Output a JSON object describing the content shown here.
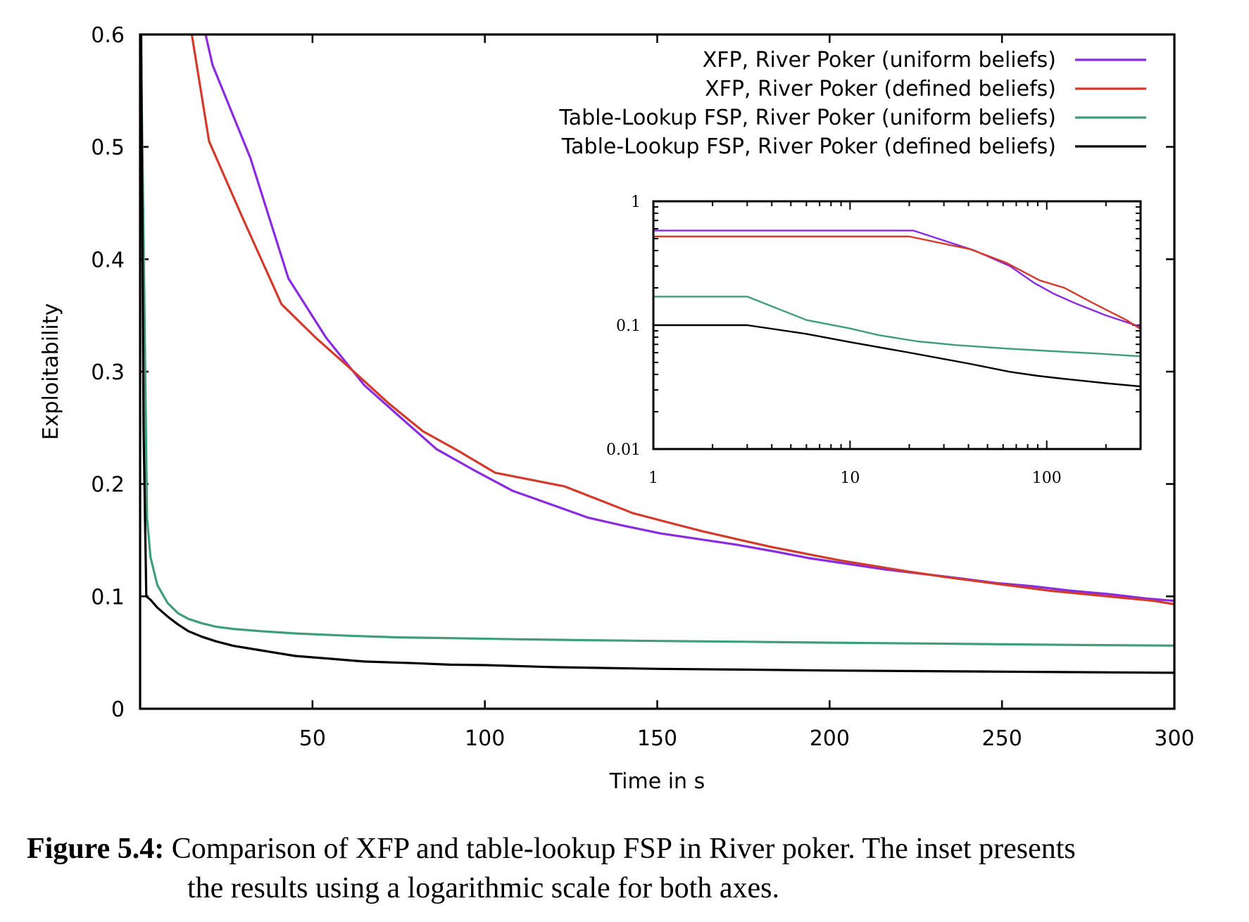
{
  "chart_data": [
    {
      "id": "main",
      "type": "line",
      "xlabel": "Time in s",
      "ylabel": "Exploitability",
      "xlim": [
        0,
        300
      ],
      "ylim": [
        0,
        0.6
      ],
      "xticks": [
        50,
        100,
        150,
        200,
        250,
        300
      ],
      "yticks": [
        0,
        0.1,
        0.2,
        0.3,
        0.4,
        0.5,
        0.6
      ],
      "xtick_labels": [
        "50",
        "100",
        "150",
        "200",
        "250",
        "300"
      ],
      "ytick_labels": [
        "0",
        "0.1",
        "0.2",
        "0.3",
        "0.4",
        "0.5",
        "0.6"
      ],
      "legend_position": "top-right",
      "series": [
        {
          "name": "XFP, River Poker (uniform beliefs)",
          "color": "#8a2be2",
          "points": [
            [
              19,
              0.6
            ],
            [
              21,
              0.573
            ],
            [
              32,
              0.49
            ],
            [
              43,
              0.383
            ],
            [
              54,
              0.33
            ],
            [
              65,
              0.288
            ],
            [
              76,
              0.258
            ],
            [
              86,
              0.231
            ],
            [
              97,
              0.212
            ],
            [
              108,
              0.194
            ],
            [
              119,
              0.182
            ],
            [
              130,
              0.17
            ],
            [
              140,
              0.163
            ],
            [
              151,
              0.156
            ],
            [
              162,
              0.151
            ],
            [
              173,
              0.146
            ],
            [
              184,
              0.14
            ],
            [
              194,
              0.134
            ],
            [
              205,
              0.129
            ],
            [
              216,
              0.124
            ],
            [
              227,
              0.12
            ],
            [
              238,
              0.116
            ],
            [
              248,
              0.112
            ],
            [
              259,
              0.109
            ],
            [
              270,
              0.105
            ],
            [
              281,
              0.102
            ],
            [
              292,
              0.098
            ],
            [
              300,
              0.096
            ]
          ]
        },
        {
          "name": "XFP, River Poker (defined beliefs)",
          "color": "#d43a2a",
          "points": [
            [
              15,
              0.6
            ],
            [
              20,
              0.505
            ],
            [
              30,
              0.435
            ],
            [
              41,
              0.36
            ],
            [
              51,
              0.33
            ],
            [
              62,
              0.3
            ],
            [
              72,
              0.272
            ],
            [
              82,
              0.247
            ],
            [
              92,
              0.23
            ],
            [
              103,
              0.21
            ],
            [
              113,
              0.204
            ],
            [
              123,
              0.198
            ],
            [
              133,
              0.186
            ],
            [
              143,
              0.174
            ],
            [
              153,
              0.166
            ],
            [
              163,
              0.158
            ],
            [
              173,
              0.151
            ],
            [
              183,
              0.144
            ],
            [
              193,
              0.138
            ],
            [
              203,
              0.132
            ],
            [
              213,
              0.127
            ],
            [
              223,
              0.122
            ],
            [
              234,
              0.117
            ],
            [
              244,
              0.113
            ],
            [
              254,
              0.109
            ],
            [
              264,
              0.105
            ],
            [
              274,
              0.102
            ],
            [
              284,
              0.099
            ],
            [
              294,
              0.096
            ],
            [
              300,
              0.093
            ]
          ]
        },
        {
          "name": "Table-Lookup FSP, River Poker (uniform beliefs)",
          "color": "#3e9e7a",
          "points": [
            [
              0.2,
              0.6
            ],
            [
              1,
              0.42
            ],
            [
              2,
              0.17
            ],
            [
              3,
              0.135
            ],
            [
              5,
              0.11
            ],
            [
              8,
              0.094
            ],
            [
              11,
              0.085
            ],
            [
              14,
              0.08
            ],
            [
              18,
              0.076
            ],
            [
              22,
              0.073
            ],
            [
              27,
              0.071
            ],
            [
              35,
              0.069
            ],
            [
              45,
              0.067
            ],
            [
              60,
              0.065
            ],
            [
              75,
              0.0635
            ],
            [
              90,
              0.0628
            ],
            [
              110,
              0.0618
            ],
            [
              130,
              0.061
            ],
            [
              150,
              0.0603
            ],
            [
              175,
              0.0596
            ],
            [
              200,
              0.0588
            ],
            [
              225,
              0.0581
            ],
            [
              250,
              0.0574
            ],
            [
              275,
              0.0567
            ],
            [
              300,
              0.0562
            ]
          ]
        },
        {
          "name": "Table-Lookup FSP, River Poker (defined beliefs)",
          "color": "#000000",
          "points": [
            [
              0.3,
              0.6
            ],
            [
              1,
              0.25
            ],
            [
              1.8,
              0.1
            ],
            [
              3,
              0.097
            ],
            [
              5,
              0.09
            ],
            [
              8,
              0.082
            ],
            [
              11,
              0.075
            ],
            [
              14,
              0.069
            ],
            [
              18,
              0.064
            ],
            [
              22,
              0.06
            ],
            [
              27,
              0.056
            ],
            [
              35,
              0.052
            ],
            [
              45,
              0.047
            ],
            [
              55,
              0.0445
            ],
            [
              65,
              0.042
            ],
            [
              80,
              0.0405
            ],
            [
              90,
              0.0392
            ],
            [
              100,
              0.0388
            ],
            [
              120,
              0.037
            ],
            [
              150,
              0.0355
            ],
            [
              175,
              0.0348
            ],
            [
              200,
              0.034
            ],
            [
              225,
              0.0335
            ],
            [
              250,
              0.033
            ],
            [
              275,
              0.0325
            ],
            [
              300,
              0.032
            ]
          ]
        }
      ]
    },
    {
      "id": "inset",
      "type": "line",
      "xscale": "log",
      "yscale": "log",
      "xlim": [
        1,
        300
      ],
      "ylim": [
        0.01,
        1
      ],
      "xtick_labels": [
        "1",
        "10",
        "100"
      ],
      "ytick_labels": [
        "0.01",
        "0.1",
        "1"
      ],
      "series": [
        {
          "color": "#8a2be2",
          "points": [
            [
              1,
              0.58
            ],
            [
              21,
              0.58
            ],
            [
              43,
              0.4
            ],
            [
              65,
              0.3
            ],
            [
              86,
              0.22
            ],
            [
              108,
              0.18
            ],
            [
              140,
              0.15
            ],
            [
              200,
              0.12
            ],
            [
              300,
              0.097
            ]
          ]
        },
        {
          "color": "#d43a2a",
          "points": [
            [
              1,
              0.52
            ],
            [
              20,
              0.52
            ],
            [
              41,
              0.41
            ],
            [
              62,
              0.32
            ],
            [
              92,
              0.23
            ],
            [
              123,
              0.2
            ],
            [
              173,
              0.15
            ],
            [
              254,
              0.11
            ],
            [
              300,
              0.093
            ]
          ]
        },
        {
          "color": "#3e9e7a",
          "points": [
            [
              1,
              0.17
            ],
            [
              3,
              0.17
            ],
            [
              6,
              0.11
            ],
            [
              10,
              0.094
            ],
            [
              14,
              0.083
            ],
            [
              22,
              0.074
            ],
            [
              35,
              0.069
            ],
            [
              60,
              0.065
            ],
            [
              100,
              0.062
            ],
            [
              180,
              0.059
            ],
            [
              300,
              0.056
            ]
          ]
        },
        {
          "color": "#000000",
          "points": [
            [
              1,
              0.1
            ],
            [
              3,
              0.1
            ],
            [
              6,
              0.085
            ],
            [
              10,
              0.073
            ],
            [
              20,
              0.06
            ],
            [
              40,
              0.049
            ],
            [
              65,
              0.042
            ],
            [
              90,
              0.039
            ],
            [
              120,
              0.037
            ],
            [
              200,
              0.034
            ],
            [
              300,
              0.032
            ]
          ]
        }
      ]
    }
  ],
  "caption": {
    "label": "Figure 5.4:",
    "text_line1": "Comparison of XFP and table-lookup FSP in River poker.  The inset presents",
    "text_line2": "the results using a logarithmic scale for both axes."
  }
}
